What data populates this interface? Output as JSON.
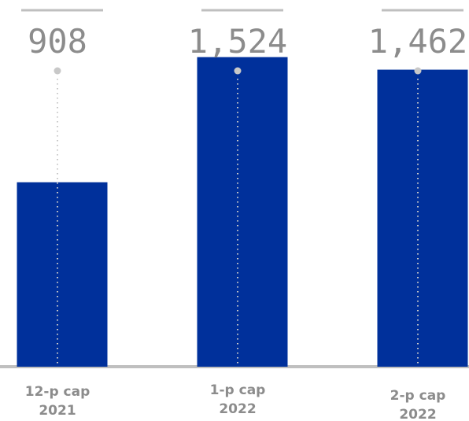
{
  "chart_data": {
    "type": "bar",
    "categories": [
      [
        "12-p cap",
        "2021"
      ],
      [
        "1-p cap",
        "2022"
      ],
      [
        "2-p cap",
        "2022"
      ]
    ],
    "values": [
      908,
      1524,
      1462
    ],
    "value_labels": [
      "908",
      "1,524",
      "1,462"
    ],
    "title": "",
    "xlabel": "",
    "ylabel": "",
    "ylim": [
      0,
      1805
    ],
    "grid": false,
    "legend": "none",
    "colors": {
      "bar": "#00309b",
      "baseline": "#bfbfbf",
      "label": "#8c8c8c",
      "connector": "#c8c8c8"
    }
  }
}
